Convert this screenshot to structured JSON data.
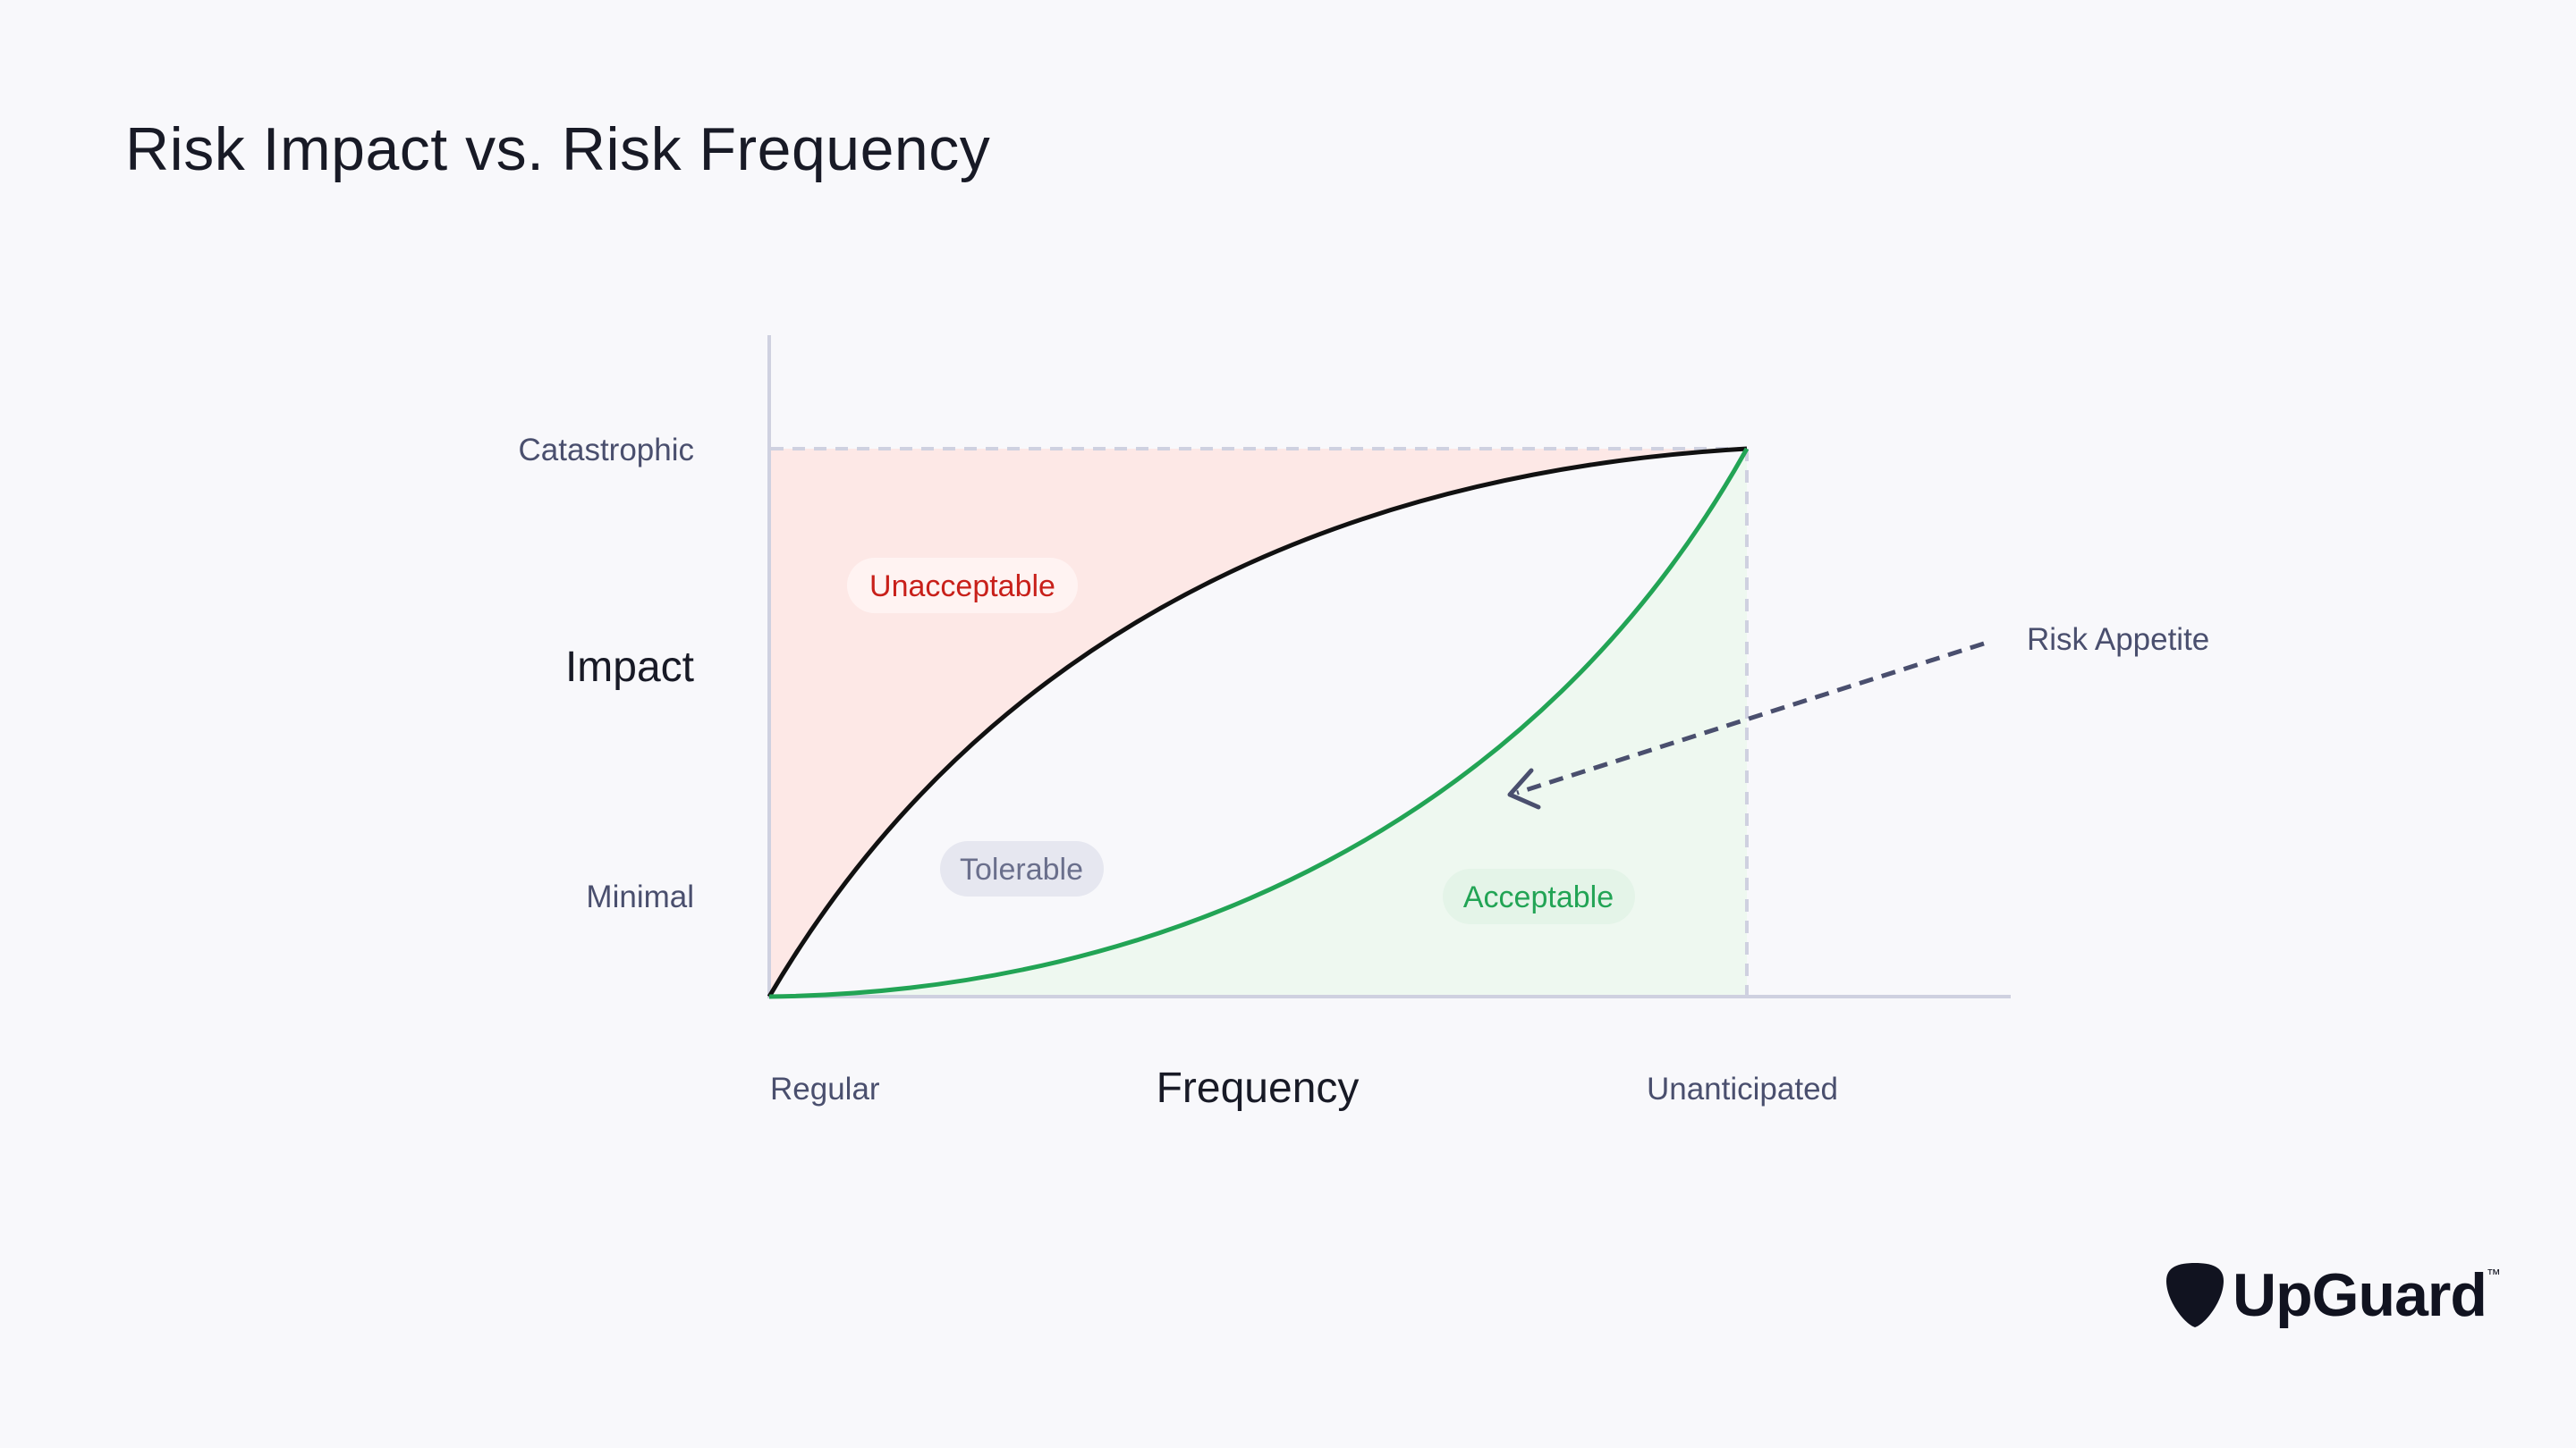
{
  "title": "Risk Impact vs. Risk Frequency",
  "axes": {
    "y_title": "Impact",
    "y_top_label": "Catastrophic",
    "y_bottom_label": "Minimal",
    "x_title": "Frequency",
    "x_left_label": "Regular",
    "x_right_label": "Unanticipated"
  },
  "zones": {
    "unacceptable": "Unacceptable",
    "tolerable": "Tolerable",
    "acceptable": "Acceptable"
  },
  "annotation": {
    "risk_appetite": "Risk Appetite"
  },
  "logo": {
    "name": "UpGuard",
    "trademark": "™",
    "icon": "guitar-pick-icon"
  },
  "colors": {
    "background": "#f8f8fb",
    "unacceptable_fill": "#fde8e6",
    "unacceptable_text": "#c8201a",
    "acceptable_fill": "#eef8f0",
    "acceptable_text": "#22a455",
    "acceptable_curve": "#22a455",
    "tolerable_curve": "#111111",
    "tolerable_pill": "#e6e7f0",
    "arrow": "#4a4f6e",
    "axis": "#cfd1e0"
  }
}
